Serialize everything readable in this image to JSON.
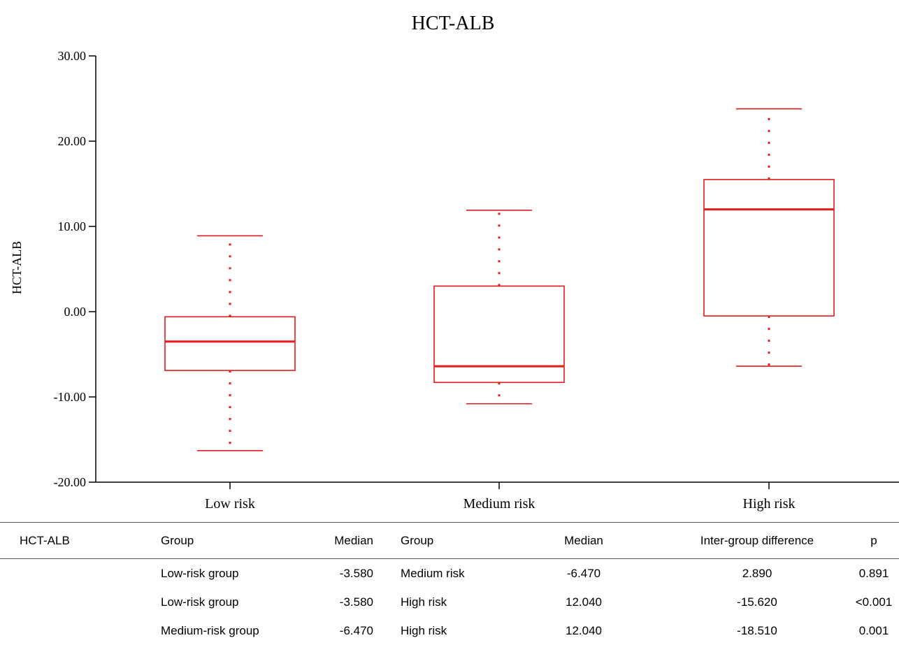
{
  "chart_data": {
    "type": "box",
    "title": "HCT-ALB",
    "ylabel": "HCT-ALB",
    "xlabel": "",
    "ylim": [
      -20,
      30
    ],
    "yticks": [
      -20,
      -10,
      0,
      10,
      20,
      30
    ],
    "ytick_labels": [
      "-20.00",
      "-10.00",
      "0.00",
      "10.00",
      "20.00",
      "30.00"
    ],
    "categories": [
      "Low risk",
      "Medium risk",
      "High risk"
    ],
    "boxes": [
      {
        "category": "Low risk",
        "whisker_low": -16.3,
        "q1": -6.9,
        "median": -3.5,
        "q3": -0.6,
        "whisker_high": 8.9
      },
      {
        "category": "Medium risk",
        "whisker_low": -10.8,
        "q1": -8.3,
        "median": -6.4,
        "q3": 3.0,
        "whisker_high": 11.9
      },
      {
        "category": "High risk",
        "whisker_low": -6.4,
        "q1": -0.5,
        "median": 12.0,
        "q3": 15.5,
        "whisker_high": 23.8
      }
    ],
    "color": "#e41a1c",
    "grid": false
  },
  "table": {
    "headers": [
      "HCT-ALB",
      "Group",
      "Median",
      "Group",
      "Median",
      "Inter-group difference",
      "p"
    ],
    "rows": [
      [
        "",
        "Low-risk group",
        "-3.580",
        "Medium risk",
        "-6.470",
        "2.890",
        "0.891"
      ],
      [
        "",
        "Low-risk group",
        "-3.580",
        "High risk",
        "12.040",
        "-15.620",
        "<0.001"
      ],
      [
        "",
        "Medium-risk group",
        "-6.470",
        "High risk",
        "12.040",
        "-18.510",
        "0.001"
      ]
    ]
  }
}
